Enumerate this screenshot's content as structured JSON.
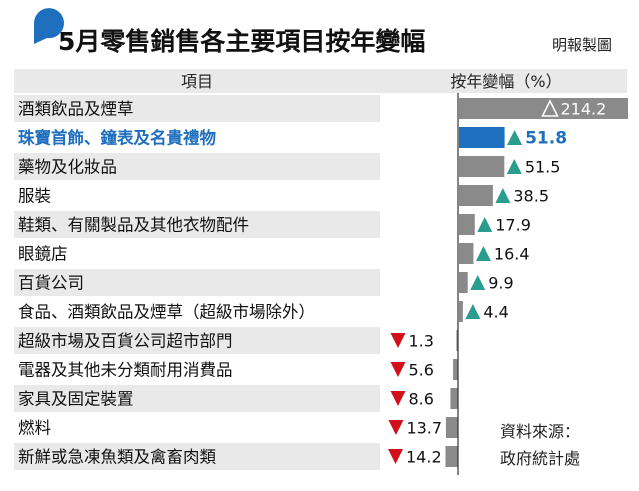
{
  "title": "5月零售銷售各主要項目按年變幅",
  "credit": "明報製圖",
  "header": {
    "category_col": "項目",
    "value_col": "按年變幅（%）"
  },
  "source": {
    "line1": "資料來源：",
    "line2": "政府統計處"
  },
  "colors": {
    "bar": "#8a8a8a",
    "highlight_bar": "#1f6fbf",
    "highlight_text": "#1f6fbf",
    "up_marker": "#2a9d8f",
    "down_marker": "#d0111b",
    "row_stripe": "#e9e9e9",
    "header_bg": "#e9e9e9",
    "zero_line": "#333333",
    "bubble": "#1f6fbf"
  },
  "chart_data": {
    "type": "bar",
    "orientation": "horizontal",
    "categories": [
      "酒類飲品及煙草",
      "珠寶首飾、鐘表及名貴禮物",
      "藥物及化妝品",
      "服裝",
      "鞋類、有關製品及其他衣物配件",
      "眼鏡店",
      "百貨公司",
      "食品、酒類飲品及煙草（超級市場除外）",
      "超級市場及百貨公司超市部門",
      "電器及其他未分類耐用消費品",
      "家具及固定裝置",
      "燃料",
      "新鮮或急凍魚類及禽畜肉類"
    ],
    "values": [
      214.2,
      51.8,
      51.5,
      38.5,
      17.9,
      16.4,
      9.9,
      4.4,
      -1.3,
      -5.6,
      -8.6,
      -13.7,
      -14.2
    ],
    "value_labels": [
      "214.2",
      "51.8",
      "51.5",
      "38.5",
      "17.9",
      "16.4",
      "9.9",
      "4.4",
      "1.3",
      "5.6",
      "8.6",
      "13.7",
      "14.2"
    ],
    "highlight_index": 1,
    "xlabel": "按年變幅（%）",
    "ylabel": "項目",
    "grid": false,
    "legend": "none"
  }
}
